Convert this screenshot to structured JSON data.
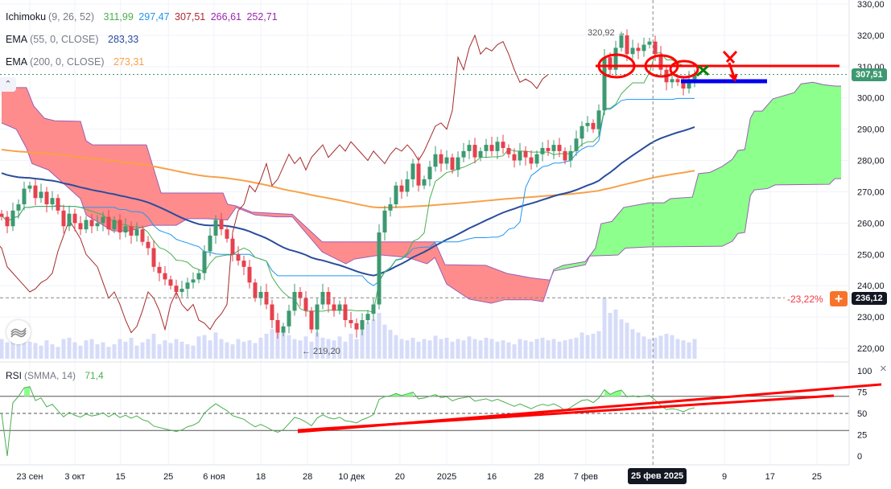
{
  "legend": {
    "ichimoku": {
      "name": "Ichimoku",
      "params": "(9, 26, 52)",
      "values": [
        "311,99",
        "297,47",
        "307,51",
        "266,61",
        "252,71"
      ],
      "colors": [
        "#4caf50",
        "#2196f3",
        "#b22833",
        "#9c27b0",
        "#9c27b0"
      ]
    },
    "ema55": {
      "name": "EMA",
      "params": "(55, 0, CLOSE)",
      "value": "283,33",
      "color": "#2a4d9c"
    },
    "ema200": {
      "name": "EMA",
      "params": "(200, 0, CLOSE)",
      "value": "273,31",
      "color": "#f7a14a"
    },
    "rsi": {
      "name": "RSI",
      "params": "(SMMA, 14)",
      "value": "71,4",
      "color": "#4caf50"
    }
  },
  "price_axis": {
    "ticks": [
      330,
      320,
      310,
      300,
      290,
      280,
      270,
      260,
      250,
      240,
      230,
      220
    ],
    "tick_labels": [
      "330,00",
      "320,00",
      "310,00",
      "300,00",
      "290,00",
      "280,00",
      "270,00",
      "260,00",
      "250,00",
      "240,00",
      "230,00",
      "220,00"
    ]
  },
  "rsi_axis": {
    "ticks": [
      100,
      75,
      50,
      25,
      0
    ],
    "tick_labels": [
      "100",
      "75",
      "50",
      "25",
      "0"
    ],
    "upper": 70,
    "lower": 30,
    "mid": 50
  },
  "time_axis": [
    {
      "label": "23 сен",
      "bar": 5
    },
    {
      "label": "3 окт",
      "bar": 13
    },
    {
      "label": "15",
      "bar": 21.1
    },
    {
      "label": "25",
      "bar": 29.6
    },
    {
      "label": "6 ноя",
      "bar": 37.7
    },
    {
      "label": "18",
      "bar": 46
    },
    {
      "label": "28",
      "bar": 54.3
    },
    {
      "label": "10 дек",
      "bar": 62.1
    },
    {
      "label": "20",
      "bar": 70.7
    },
    {
      "label": "2025",
      "bar": 79
    },
    {
      "label": "16",
      "bar": 87
    },
    {
      "label": "28",
      "bar": 95.4
    },
    {
      "label": "7 фев",
      "bar": 103.7
    },
    {
      "label": "9",
      "bar": 128.3
    },
    {
      "label": "17",
      "bar": 136.4
    },
    {
      "label": "25",
      "bar": 144.7
    }
  ],
  "crosshair": {
    "bar": 115.6,
    "date_label": "25 фев 2025"
  },
  "last_price": {
    "value": 307.51,
    "label": "307,51",
    "color": "#3d9970"
  },
  "measure": {
    "value": 236.12,
    "label": "236,12",
    "pct": "-23,22%",
    "plus": "+"
  },
  "extremes": {
    "high_label": "320,92 →",
    "low_label": "← 219,20"
  },
  "chart_data": {
    "type": "candlestick",
    "closes": [
      262,
      259,
      264,
      266,
      271,
      272,
      268,
      270,
      266,
      268,
      264,
      259,
      263,
      260,
      258,
      261,
      259,
      260,
      262,
      258,
      261,
      257,
      259,
      256,
      258,
      254,
      252,
      246,
      244,
      242,
      240,
      238,
      239,
      241,
      242,
      244,
      251,
      256,
      261,
      258,
      255,
      250,
      248,
      246,
      241,
      236,
      238,
      234,
      229,
      225,
      227,
      232,
      238,
      236,
      232,
      226,
      234,
      238,
      234,
      232,
      234,
      229,
      228,
      226,
      229,
      231,
      234,
      257,
      264,
      266,
      272,
      270,
      274,
      279,
      272,
      274,
      278,
      282,
      279,
      281,
      277,
      281,
      283,
      285,
      281,
      283,
      285,
      283,
      286,
      284,
      282,
      280,
      283,
      281,
      279,
      282,
      284,
      283,
      285,
      283,
      280,
      283,
      287,
      291,
      292,
      290,
      296,
      313,
      309,
      316,
      320,
      314,
      316,
      315,
      317,
      318,
      314,
      309,
      305,
      306,
      305,
      303,
      306,
      307.51
    ],
    "volume": [
      30,
      25,
      28,
      22,
      30,
      26,
      24,
      20,
      28,
      22,
      18,
      30,
      32,
      25,
      20,
      28,
      30,
      22,
      25,
      18,
      22,
      30,
      26,
      32,
      20,
      25,
      30,
      38,
      22,
      28,
      24,
      30,
      26,
      22,
      20,
      34,
      36,
      28,
      40,
      30,
      25,
      22,
      30,
      26,
      28,
      24,
      32,
      38,
      45,
      50,
      42,
      36,
      30,
      28,
      34,
      26,
      40,
      32,
      30,
      28,
      34,
      26,
      38,
      30,
      45,
      55,
      60,
      70,
      52,
      44,
      36,
      30,
      28,
      32,
      26,
      30,
      28,
      35,
      30,
      32,
      26,
      30,
      28,
      34,
      30,
      28,
      32,
      30,
      26,
      28,
      25,
      22,
      30,
      28,
      26,
      30,
      32,
      28,
      30,
      26,
      28,
      30,
      32,
      40,
      36,
      38,
      42,
      92,
      70,
      75,
      60,
      55,
      45,
      40,
      34,
      30,
      32,
      35,
      38,
      36,
      30,
      28,
      25,
      30
    ],
    "span_a": [
      [
        0,
        292
      ],
      [
        2.6,
        290
      ],
      [
        4.4,
        284
      ],
      [
        5.4,
        279
      ],
      [
        8.3,
        277
      ],
      [
        14,
        267.8
      ],
      [
        15,
        262.6
      ],
      [
        19.7,
        257.5
      ],
      [
        22.6,
        257.5
      ],
      [
        26.4,
        259.3
      ],
      [
        31,
        259.3
      ],
      [
        33,
        261.4
      ],
      [
        36.4,
        261.4
      ],
      [
        40.1,
        261
      ],
      [
        41.6,
        265
      ],
      [
        45,
        262.6
      ],
      [
        48.7,
        262
      ],
      [
        51.6,
        262
      ],
      [
        56.9,
        250.8
      ],
      [
        61.1,
        247
      ],
      [
        62.6,
        248.5
      ],
      [
        67.3,
        249.8
      ],
      [
        72.1,
        249
      ],
      [
        75.5,
        247
      ],
      [
        76.9,
        249
      ],
      [
        79,
        240.5
      ],
      [
        83,
        235.7
      ],
      [
        86.9,
        234.4
      ],
      [
        89.3,
        235.5
      ],
      [
        94,
        235.5
      ],
      [
        96.1,
        234.9
      ],
      [
        98,
        245.2
      ],
      [
        99.7,
        246.5
      ],
      [
        103.6,
        247.7
      ],
      [
        105.4,
        252
      ],
      [
        106.4,
        259.8
      ],
      [
        108.3,
        260.5
      ],
      [
        110.4,
        265
      ],
      [
        115,
        266.5
      ],
      [
        117.6,
        266.5
      ],
      [
        118.7,
        267.8
      ],
      [
        122.6,
        268.3
      ],
      [
        123.7,
        275.8
      ],
      [
        125.7,
        276.2
      ],
      [
        127.9,
        278.1
      ],
      [
        129.7,
        280.4
      ],
      [
        130.7,
        283.2
      ],
      [
        131.9,
        283.5
      ],
      [
        132.9,
        293.5
      ],
      [
        133.6,
        295.8
      ],
      [
        135,
        295.8
      ],
      [
        136.9,
        299.7
      ],
      [
        140.7,
        301.7
      ],
      [
        141.9,
        304.5
      ],
      [
        144,
        305
      ],
      [
        145.9,
        304.2
      ],
      [
        147.9,
        303.8
      ],
      [
        149,
        303.8
      ]
    ],
    "span_b": [
      [
        0,
        303.3
      ],
      [
        4.4,
        303.3
      ],
      [
        5.7,
        297.4
      ],
      [
        7.6,
        293.5
      ],
      [
        9.4,
        292.7
      ],
      [
        14,
        292.5
      ],
      [
        15,
        286.3
      ],
      [
        16.1,
        285
      ],
      [
        25.7,
        285
      ],
      [
        28.3,
        269.6
      ],
      [
        39.3,
        269.6
      ],
      [
        40.1,
        266
      ],
      [
        41.6,
        265.5
      ],
      [
        44.4,
        263.5
      ],
      [
        51.6,
        262.8
      ],
      [
        56.9,
        254
      ],
      [
        76.9,
        254
      ],
      [
        78.7,
        246.7
      ],
      [
        85.9,
        246.5
      ],
      [
        89.7,
        243.9
      ],
      [
        94,
        242.5
      ],
      [
        97.3,
        241.8
      ],
      [
        98,
        244.7
      ],
      [
        103.6,
        246.7
      ],
      [
        104.4,
        249.5
      ],
      [
        109.4,
        249.8
      ],
      [
        110.7,
        252
      ],
      [
        115,
        252.4
      ],
      [
        127.9,
        252.6
      ],
      [
        129.7,
        254.2
      ],
      [
        130.7,
        256.7
      ],
      [
        131.9,
        257
      ],
      [
        132.9,
        268.8
      ],
      [
        133.6,
        270.6
      ],
      [
        135.9,
        271
      ],
      [
        137.3,
        272.2
      ],
      [
        146.9,
        272.4
      ],
      [
        147.9,
        274.2
      ],
      [
        149,
        274.2
      ]
    ],
    "ema55_start": 276.5,
    "ema200_start": 283.7,
    "ylim": [
      217,
      331
    ],
    "colors": {
      "up": "#3d9970",
      "down": "#e5424d",
      "tenkan": "#4caf50",
      "kijun": "#2196f3",
      "chikou": "#a52a2a",
      "ema55": "#2a4d9c",
      "ema200": "#f7a14a",
      "cloud_up": "#8cff8c",
      "cloud_down": "#ff8c8c",
      "cloud_edge": "#9c5fb5",
      "volume": "#d6dcf8"
    }
  }
}
